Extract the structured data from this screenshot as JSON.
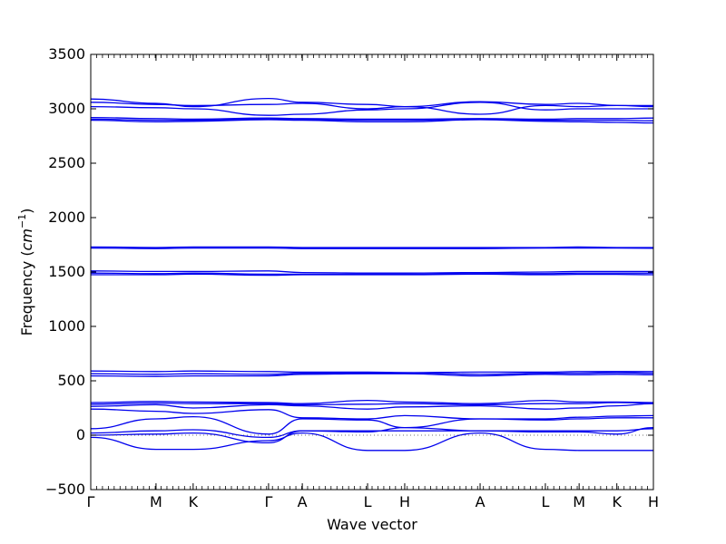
{
  "chart_data": {
    "type": "line",
    "xlabel": "Wave vector",
    "ylabel_prefix": "Frequency (",
    "ylabel_unit_base": "cm",
    "ylabel_unit_exp": "−1",
    "ylabel_suffix": ")",
    "ylim": [
      -500,
      3500
    ],
    "yticks": [
      -500,
      0,
      500,
      1000,
      1500,
      2000,
      2500,
      3000,
      3500
    ],
    "xlim": [
      0,
      1
    ],
    "high_symmetry_points": [
      {
        "label": "Γ",
        "x": 0.0
      },
      {
        "label": "M",
        "x": 0.116
      },
      {
        "label": "K",
        "x": 0.182
      },
      {
        "label": "Γ",
        "x": 0.316
      },
      {
        "label": "A",
        "x": 0.376
      },
      {
        "label": "L",
        "x": 0.492
      },
      {
        "label": "H",
        "x": 0.558
      },
      {
        "label": "A",
        "x": 0.692
      },
      {
        "label": "L",
        "x": 0.808
      },
      {
        "label": "M",
        "x": 0.868
      },
      {
        "label": "K",
        "x": 0.935
      },
      {
        "label": "H",
        "x": 1.0
      }
    ],
    "series_color": "#0000ee",
    "minor_tick_count": 96,
    "zero_line": true,
    "series": [
      {
        "x": [
          0,
          0.116,
          0.182,
          0.316,
          0.376,
          0.492,
          0.558,
          0.692,
          0.808,
          0.868,
          0.935,
          1
        ],
        "y": [
          3090,
          3050,
          3020,
          3095,
          3060,
          3040,
          3020,
          3065,
          3040,
          3050,
          3030,
          3020
        ]
      },
      {
        "x": [
          0,
          0.116,
          0.182,
          0.316,
          0.376,
          0.492,
          0.558,
          0.692,
          0.808,
          0.868,
          0.935,
          1
        ],
        "y": [
          3060,
          3040,
          3030,
          3040,
          3050,
          3000,
          3020,
          2950,
          3030,
          3020,
          3030,
          3030
        ]
      },
      {
        "x": [
          0,
          0.116,
          0.182,
          0.316,
          0.376,
          0.492,
          0.558,
          0.692,
          0.808,
          0.868,
          0.935,
          1
        ],
        "y": [
          3020,
          3010,
          3000,
          2940,
          2950,
          2990,
          3000,
          3060,
          2990,
          3000,
          3000,
          3000
        ]
      },
      {
        "x": [
          0,
          0.116,
          0.182,
          0.316,
          0.376,
          0.492,
          0.558,
          0.692,
          0.808,
          0.868,
          0.935,
          1
        ],
        "y": [
          2920,
          2910,
          2905,
          2915,
          2910,
          2905,
          2905,
          2910,
          2905,
          2910,
          2910,
          2915
        ]
      },
      {
        "x": [
          0,
          0.116,
          0.182,
          0.316,
          0.376,
          0.492,
          0.558,
          0.692,
          0.808,
          0.868,
          0.935,
          1
        ],
        "y": [
          2905,
          2895,
          2895,
          2905,
          2900,
          2895,
          2895,
          2905,
          2895,
          2895,
          2895,
          2890
        ]
      },
      {
        "x": [
          0,
          0.116,
          0.182,
          0.316,
          0.376,
          0.492,
          0.558,
          0.692,
          0.808,
          0.868,
          0.935,
          1
        ],
        "y": [
          2895,
          2880,
          2885,
          2900,
          2895,
          2880,
          2880,
          2900,
          2885,
          2880,
          2875,
          2870
        ]
      },
      {
        "x": [
          0,
          0.116,
          0.182,
          0.316,
          0.376,
          0.492,
          0.558,
          0.692,
          0.808,
          0.868,
          0.935,
          1
        ],
        "y": [
          1730,
          1725,
          1730,
          1730,
          1725,
          1725,
          1725,
          1725,
          1725,
          1730,
          1725,
          1725
        ]
      },
      {
        "x": [
          0,
          0.116,
          0.182,
          0.316,
          0.376,
          0.492,
          0.558,
          0.692,
          0.808,
          0.868,
          0.935,
          1
        ],
        "y": [
          1720,
          1715,
          1720,
          1720,
          1715,
          1715,
          1715,
          1715,
          1720,
          1720,
          1720,
          1718
        ]
      },
      {
        "x": [
          0,
          0.116,
          0.182,
          0.316,
          0.376,
          0.492,
          0.558,
          0.692,
          0.808,
          0.868,
          0.935,
          1
        ],
        "y": [
          1510,
          1505,
          1505,
          1510,
          1495,
          1490,
          1490,
          1495,
          1500,
          1505,
          1505,
          1505
        ]
      },
      {
        "x": [
          0,
          0.116,
          0.182,
          0.316,
          0.376,
          0.492,
          0.558,
          0.692,
          0.808,
          0.868,
          0.935,
          1
        ],
        "y": [
          1490,
          1485,
          1490,
          1480,
          1480,
          1480,
          1480,
          1485,
          1485,
          1490,
          1490,
          1490
        ]
      },
      {
        "x": [
          0,
          0.116,
          0.182,
          0.316,
          0.376,
          0.492,
          0.558,
          0.692,
          0.808,
          0.868,
          0.935,
          1
        ],
        "y": [
          1475,
          1475,
          1480,
          1470,
          1475,
          1475,
          1475,
          1480,
          1475,
          1478,
          1478,
          1475
        ]
      },
      {
        "x": [
          0,
          0.116,
          0.182,
          0.316,
          0.376,
          0.492,
          0.558,
          0.692,
          0.808,
          0.868,
          0.935,
          1
        ],
        "y": [
          590,
          585,
          590,
          585,
          580,
          580,
          575,
          580,
          580,
          585,
          585,
          585
        ]
      },
      {
        "x": [
          0,
          0.116,
          0.182,
          0.316,
          0.376,
          0.492,
          0.558,
          0.692,
          0.808,
          0.868,
          0.935,
          1
        ],
        "y": [
          565,
          560,
          565,
          560,
          570,
          575,
          575,
          560,
          570,
          570,
          575,
          570
        ]
      },
      {
        "x": [
          0,
          0.116,
          0.182,
          0.316,
          0.376,
          0.492,
          0.558,
          0.692,
          0.808,
          0.868,
          0.935,
          1
        ],
        "y": [
          545,
          540,
          545,
          545,
          560,
          565,
          565,
          545,
          560,
          555,
          560,
          555
        ]
      },
      {
        "x": [
          0,
          0.116,
          0.182,
          0.316,
          0.376,
          0.492,
          0.558,
          0.692,
          0.808,
          0.868,
          0.935,
          1
        ],
        "y": [
          300,
          310,
          305,
          300,
          290,
          320,
          305,
          290,
          320,
          305,
          305,
          300
        ]
      },
      {
        "x": [
          0,
          0.116,
          0.182,
          0.316,
          0.376,
          0.492,
          0.558,
          0.692,
          0.808,
          0.868,
          0.935,
          1
        ],
        "y": [
          285,
          295,
          290,
          290,
          280,
          285,
          290,
          280,
          290,
          290,
          300,
          295
        ]
      },
      {
        "x": [
          0,
          0.116,
          0.182,
          0.316,
          0.376,
          0.492,
          0.558,
          0.692,
          0.808,
          0.868,
          0.935,
          1
        ],
        "y": [
          265,
          280,
          250,
          280,
          270,
          240,
          260,
          270,
          240,
          250,
          270,
          290
        ]
      },
      {
        "x": [
          0,
          0.116,
          0.182,
          0.316,
          0.376,
          0.492,
          0.558,
          0.692,
          0.808,
          0.868,
          0.935,
          1
        ],
        "y": [
          240,
          220,
          200,
          235,
          160,
          150,
          180,
          150,
          150,
          165,
          175,
          180
        ]
      },
      {
        "x": [
          0,
          0.116,
          0.182,
          0.316,
          0.376,
          0.492,
          0.558,
          0.692,
          0.808,
          0.868,
          0.935,
          1
        ],
        "y": [
          60,
          150,
          170,
          10,
          150,
          140,
          70,
          150,
          140,
          150,
          160,
          160
        ]
      },
      {
        "x": [
          0,
          0.116,
          0.182,
          0.316,
          0.376,
          0.492,
          0.558,
          0.692,
          0.808,
          0.868,
          0.935,
          1
        ],
        "y": [
          20,
          40,
          50,
          -20,
          40,
          40,
          40,
          40,
          40,
          40,
          40,
          60
        ]
      },
      {
        "x": [
          0,
          0.116,
          0.182,
          0.316,
          0.376,
          0.492,
          0.558,
          0.692,
          0.808,
          0.868,
          0.935,
          1
        ],
        "y": [
          0,
          10,
          20,
          -70,
          40,
          30,
          70,
          40,
          30,
          30,
          10,
          70
        ]
      },
      {
        "x": [
          0,
          0.116,
          0.182,
          0.316,
          0.376,
          0.492,
          0.558,
          0.692,
          0.808,
          0.868,
          0.935,
          1
        ],
        "y": [
          -20,
          -130,
          -130,
          -50,
          20,
          -140,
          -140,
          20,
          -130,
          -140,
          -140,
          -140
        ]
      }
    ]
  }
}
